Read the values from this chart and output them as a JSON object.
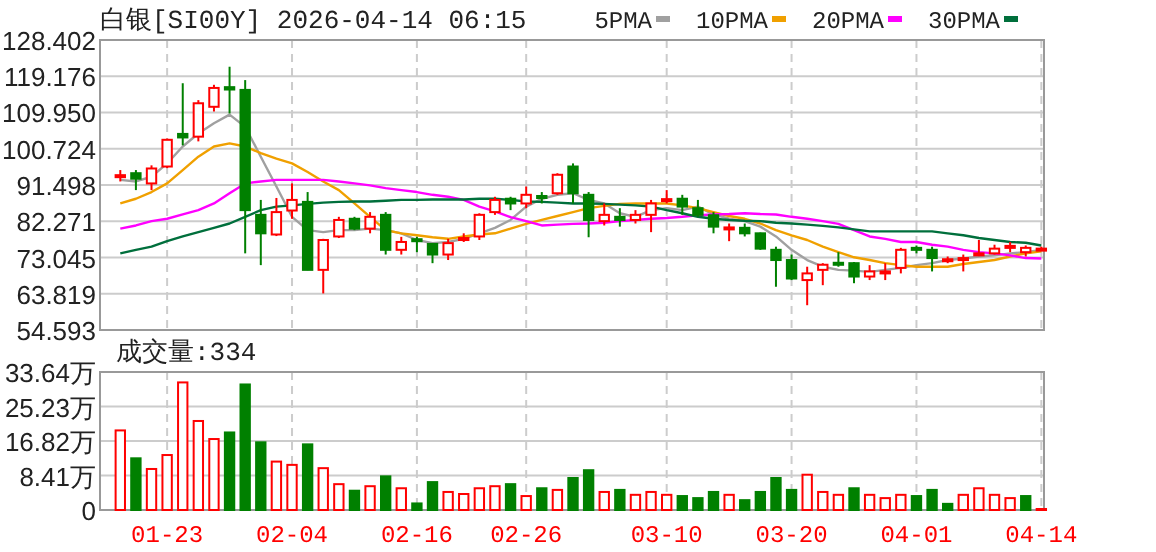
{
  "chart_data": [
    {
      "type": "candlestick",
      "title": "白银[SI00Y] 2026-04-14 06:15",
      "legend": "top right",
      "grid": true,
      "tick_labels": "y",
      "categories": [
        null,
        null,
        null,
        null,
        null,
        null,
        null,
        null,
        null,
        null,
        null,
        null,
        null,
        null,
        null,
        null,
        null,
        null,
        null,
        null,
        null,
        null,
        null,
        null,
        null,
        null,
        null,
        null,
        null,
        null,
        null,
        null,
        null,
        null,
        null,
        null,
        null,
        null,
        null,
        null,
        null,
        null,
        null,
        null,
        null,
        null,
        null,
        null,
        null,
        null,
        null,
        null,
        null,
        null,
        null,
        null,
        null,
        null,
        null,
        null
      ],
      "ylim": [
        54.593,
        128.402
      ],
      "yticks": [
        54.593,
        63.819,
        73.045,
        82.271,
        91.498,
        100.724,
        {
          "value": 109.95,
          "label": "109.950"
        },
        119.176,
        128.402
      ],
      "ohlc": [
        [
          93.9,
          95.3,
          92.4,
          94.0
        ],
        [
          94.5,
          95.3,
          90.2,
          93.1
        ],
        [
          91.9,
          96.5,
          90.2,
          95.7
        ],
        [
          96.2,
          103.3,
          95.8,
          103.0
        ],
        [
          104.5,
          117.4,
          101.6,
          103.6
        ],
        [
          103.8,
          113.1,
          102.6,
          112.3
        ],
        [
          111.4,
          117.0,
          110.2,
          116.2
        ],
        [
          116.4,
          121.6,
          109.7,
          115.8
        ],
        [
          115.7,
          118.2,
          74.1,
          85.1
        ],
        [
          83.9,
          87.7,
          71.1,
          79.2
        ],
        [
          78.9,
          88.2,
          78.5,
          84.6
        ],
        [
          85.0,
          91.9,
          82.9,
          87.7
        ],
        [
          87.2,
          89.7,
          69.8,
          69.9
        ],
        [
          69.9,
          77.8,
          63.9,
          77.5
        ],
        [
          78.4,
          83.4,
          78.0,
          82.6
        ],
        [
          82.9,
          83.4,
          80.0,
          80.4
        ],
        [
          80.4,
          84.6,
          79.2,
          83.4
        ],
        [
          83.9,
          84.6,
          73.8,
          75.0
        ],
        [
          75.0,
          78.3,
          73.8,
          77.0
        ],
        [
          77.7,
          78.3,
          74.4,
          77.3
        ],
        [
          76.5,
          76.7,
          71.6,
          73.8
        ],
        [
          73.8,
          77.8,
          72.4,
          76.7
        ],
        [
          77.7,
          79.2,
          77.0,
          78.0
        ],
        [
          78.4,
          84.3,
          77.5,
          83.9
        ],
        [
          84.6,
          88.5,
          83.9,
          87.7
        ],
        [
          88.0,
          88.5,
          85.1,
          86.8
        ],
        [
          86.8,
          91.1,
          85.6,
          89.0
        ],
        [
          88.7,
          89.7,
          86.8,
          88.4
        ],
        [
          89.4,
          94.5,
          89.0,
          94.1
        ],
        [
          96.2,
          97.0,
          86.8,
          89.4
        ],
        [
          89.0,
          89.7,
          78.2,
          82.6
        ],
        [
          82.3,
          86.8,
          81.2,
          83.9
        ],
        [
          83.4,
          85.6,
          80.9,
          82.6
        ],
        [
          82.6,
          85.1,
          81.7,
          83.9
        ],
        [
          83.9,
          87.7,
          79.5,
          86.8
        ],
        [
          87.5,
          90.2,
          86.8,
          87.9
        ],
        [
          88.0,
          89.0,
          83.9,
          86.0
        ],
        [
          85.6,
          87.7,
          83.4,
          83.9
        ],
        [
          83.8,
          84.6,
          79.2,
          80.9
        ],
        [
          80.4,
          81.7,
          77.2,
          80.7
        ],
        [
          80.6,
          81.7,
          78.4,
          79.2
        ],
        [
          79.2,
          79.4,
          75.0,
          75.3
        ],
        [
          75.0,
          75.8,
          65.6,
          72.4
        ],
        [
          72.4,
          73.8,
          67.3,
          67.7
        ],
        [
          67.3,
          70.7,
          60.9,
          69.0
        ],
        [
          69.9,
          71.6,
          66.0,
          71.2
        ],
        [
          71.7,
          74.4,
          70.7,
          71.4
        ],
        [
          71.6,
          71.9,
          66.5,
          68.2
        ],
        [
          68.2,
          71.1,
          67.3,
          69.5
        ],
        [
          69.2,
          71.6,
          67.3,
          69.5
        ],
        [
          70.4,
          75.5,
          69.0,
          75.0
        ],
        [
          75.5,
          76.1,
          74.1,
          75.1
        ],
        [
          75.0,
          75.8,
          69.5,
          72.9
        ],
        [
          72.2,
          73.3,
          71.6,
          72.6
        ],
        [
          72.6,
          73.8,
          69.5,
          72.9
        ],
        [
          73.6,
          77.5,
          73.4,
          74.1
        ],
        [
          74.1,
          76.3,
          73.8,
          75.3
        ],
        [
          75.6,
          77.0,
          74.4,
          76.0
        ],
        [
          74.4,
          76.1,
          73.3,
          75.5
        ],
        [
          75.1,
          75.8,
          74.8,
          75.3
        ]
      ],
      "series": [
        {
          "type": "line",
          "name": "5PMA",
          "color": "#a0a0a0",
          "values": [
            92.8,
            92.4,
            93.6,
            97.0,
            101.3,
            104.6,
            107.2,
            109.4,
            106.3,
            98.7,
            91.1,
            83.4,
            80.0,
            79.5,
            80.0,
            80.0,
            80.4,
            80.0,
            79.2,
            77.5,
            76.7,
            77.0,
            77.8,
            79.2,
            80.6,
            82.6,
            86.0,
            88.0,
            89.0,
            89.4,
            87.7,
            86.8,
            84.3,
            83.4,
            85.1,
            85.6,
            85.1,
            86.0,
            84.0,
            82.9,
            82.3,
            80.9,
            78.4,
            75.0,
            72.4,
            70.7,
            69.9,
            69.7,
            69.4,
            69.9,
            70.4,
            71.1,
            71.6,
            72.4,
            72.8,
            73.3,
            73.6,
            74.1,
            74.4,
            75.0
          ]
        },
        {
          "type": "line",
          "name": "10PMA",
          "color": "#f0a000",
          "values": [
            86.8,
            88.0,
            89.7,
            91.9,
            95.3,
            98.7,
            101.3,
            102.1,
            101.3,
            99.6,
            98.2,
            97.0,
            94.8,
            92.4,
            90.2,
            86.8,
            83.4,
            80.0,
            79.2,
            78.7,
            78.2,
            77.8,
            78.4,
            78.9,
            79.2,
            80.4,
            81.6,
            82.6,
            83.6,
            84.6,
            85.6,
            86.2,
            86.7,
            86.8,
            86.8,
            86.8,
            86.3,
            85.6,
            84.6,
            83.6,
            82.9,
            81.7,
            80.0,
            78.7,
            77.5,
            75.8,
            74.4,
            73.1,
            72.4,
            71.6,
            71.1,
            70.7,
            70.7,
            70.7,
            71.4,
            71.9,
            72.4,
            73.3,
            74.1,
            74.6
          ]
        },
        {
          "type": "line",
          "name": "20PMA",
          "color": "#ff00ff",
          "values": [
            80.4,
            81.2,
            82.3,
            82.9,
            84.0,
            85.1,
            86.8,
            89.4,
            91.9,
            92.4,
            92.8,
            92.8,
            92.8,
            92.8,
            92.4,
            91.9,
            91.4,
            90.7,
            90.2,
            89.7,
            89.0,
            88.5,
            87.7,
            86.0,
            84.8,
            83.3,
            82.3,
            81.2,
            81.4,
            81.6,
            81.7,
            81.9,
            82.3,
            82.6,
            82.9,
            83.1,
            83.4,
            83.8,
            84.0,
            84.1,
            84.3,
            84.1,
            84.0,
            83.4,
            82.9,
            82.3,
            81.6,
            80.0,
            78.4,
            77.8,
            77.0,
            77.0,
            76.3,
            75.8,
            75.0,
            74.4,
            74.1,
            73.6,
            72.9,
            72.8
          ]
        },
        {
          "type": "line",
          "name": "30PMA",
          "color": "#006f3c",
          "values": [
            74.1,
            75.0,
            75.8,
            77.2,
            78.4,
            79.5,
            80.6,
            81.7,
            83.4,
            85.1,
            86.0,
            86.3,
            86.7,
            87.0,
            87.2,
            87.3,
            87.3,
            87.5,
            87.7,
            87.7,
            87.8,
            87.8,
            87.8,
            88.0,
            88.0,
            87.7,
            87.3,
            87.2,
            87.0,
            86.8,
            86.8,
            86.7,
            86.5,
            86.3,
            86.0,
            85.1,
            84.3,
            83.4,
            82.9,
            82.6,
            82.4,
            82.3,
            81.9,
            81.7,
            81.4,
            81.1,
            80.7,
            80.2,
            79.7,
            79.7,
            79.7,
            79.7,
            79.7,
            79.2,
            78.7,
            78.0,
            77.5,
            77.0,
            76.8,
            76.1
          ]
        }
      ]
    },
    {
      "type": "bar",
      "title": "成交量:334",
      "grid": true,
      "categories": [
        null,
        null,
        null,
        "01-23",
        null,
        null,
        null,
        null,
        null,
        null,
        null,
        "02-04",
        null,
        null,
        null,
        null,
        null,
        null,
        null,
        "02-16",
        null,
        null,
        null,
        null,
        null,
        null,
        "02-26",
        null,
        null,
        null,
        null,
        null,
        null,
        null,
        null,
        "03-10",
        null,
        null,
        null,
        null,
        null,
        null,
        null,
        "03-20",
        null,
        null,
        null,
        null,
        null,
        null,
        null,
        "04-01",
        null,
        null,
        null,
        null,
        null,
        null,
        null,
        "04-14"
      ],
      "ylim": [
        0,
        33.64
      ],
      "yticks": [
        0,
        {
          "value": 8.41,
          "label": "8.41万"
        },
        {
          "value": 16.82,
          "label": "16.82万"
        },
        {
          "value": 25.23,
          "label": "25.23万"
        },
        {
          "value": 33.64,
          "label": "33.64万"
        }
      ],
      "values": [
        19.4,
        12.6,
        10.0,
        13.4,
        31.1,
        21.7,
        17.3,
        18.9,
        30.6,
        16.5,
        11.8,
        11.0,
        16.0,
        10.2,
        6.3,
        4.7,
        5.8,
        8.2,
        5.3,
        1.6,
        6.8,
        4.4,
        3.9,
        5.3,
        5.8,
        6.3,
        3.4,
        5.3,
        4.9,
        7.8,
        9.7,
        4.4,
        4.9,
        3.7,
        4.4,
        3.7,
        3.4,
        2.9,
        4.4,
        3.7,
        2.4,
        4.4,
        7.8,
        4.9,
        8.6,
        4.4,
        3.7,
        5.3,
        3.7,
        2.9,
        3.7,
        3.4,
        4.9,
        1.5,
        3.7,
        5.3,
        3.7,
        2.9,
        3.4,
        0.0334
      ],
      "colors": [
        "#ff0000",
        "#008000",
        "#ff0000",
        "#ff0000",
        "#ff0000",
        "#ff0000",
        "#ff0000",
        "#008000",
        "#008000",
        "#008000",
        "#ff0000",
        "#ff0000",
        "#008000",
        "#ff0000",
        "#ff0000",
        "#008000",
        "#ff0000",
        "#008000",
        "#ff0000",
        "#008000",
        "#008000",
        "#ff0000",
        "#ff0000",
        "#ff0000",
        "#ff0000",
        "#008000",
        "#ff0000",
        "#008000",
        "#ff0000",
        "#008000",
        "#008000",
        "#ff0000",
        "#008000",
        "#ff0000",
        "#ff0000",
        "#ff0000",
        "#008000",
        "#008000",
        "#008000",
        "#ff0000",
        "#008000",
        "#008000",
        "#008000",
        "#008000",
        "#ff0000",
        "#ff0000",
        "#ff0000",
        "#008000",
        "#ff0000",
        "#ff0000",
        "#ff0000",
        "#008000",
        "#008000",
        "#008000",
        "#ff0000",
        "#ff0000",
        "#ff0000",
        "#ff0000",
        "#008000",
        "#ff0000"
      ]
    }
  ]
}
